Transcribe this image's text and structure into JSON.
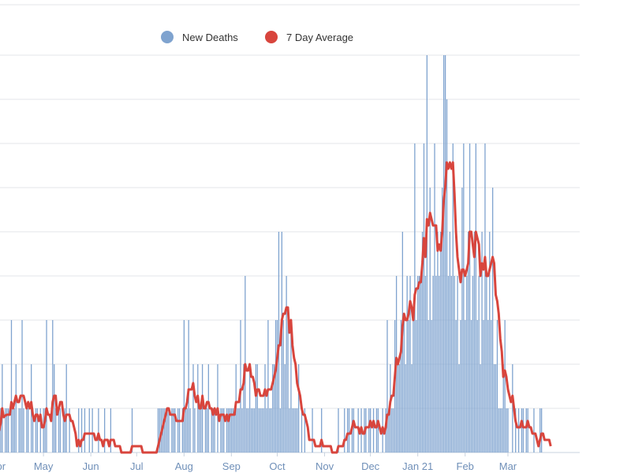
{
  "chart_data": {
    "type": "bar",
    "title": "",
    "xlabel": "",
    "ylabel": "",
    "ylim": [
      0,
      9
    ],
    "grid": true,
    "legend_position": "top-center",
    "start_date": "2020-04-01",
    "end_date": "2021-03-29",
    "x_tick_labels": [
      {
        "label": "Apr",
        "day_index": 0
      },
      {
        "label": "May",
        "day_index": 30
      },
      {
        "label": "Jun",
        "day_index": 61
      },
      {
        "label": "Jul",
        "day_index": 91
      },
      {
        "label": "Aug",
        "day_index": 122
      },
      {
        "label": "Sep",
        "day_index": 153
      },
      {
        "label": "Oct",
        "day_index": 183
      },
      {
        "label": "Nov",
        "day_index": 214
      },
      {
        "label": "Dec",
        "day_index": 244
      },
      {
        "label": "Jan 21",
        "day_index": 275
      },
      {
        "label": "Feb",
        "day_index": 306
      },
      {
        "label": "Mar",
        "day_index": 334
      }
    ],
    "series": [
      {
        "name": "New Deaths",
        "kind": "bar",
        "color": "#7fa3cf",
        "values": [
          1,
          0,
          1,
          2,
          0,
          1,
          1,
          1,
          0,
          3,
          1,
          1,
          2,
          0,
          1,
          1,
          3,
          1,
          0,
          1,
          1,
          0,
          2,
          1,
          0,
          1,
          1,
          0,
          1,
          0,
          1,
          1,
          3,
          0,
          0,
          0,
          3,
          2,
          1,
          0,
          1,
          1,
          0,
          1,
          1,
          2,
          0,
          1,
          0,
          0,
          0,
          0,
          0,
          1,
          0,
          1,
          0,
          1,
          0,
          0,
          1,
          0,
          1,
          0,
          0,
          0,
          1,
          0,
          0,
          0,
          1,
          0,
          0,
          0,
          1,
          0,
          0,
          0,
          0,
          0,
          0,
          0,
          0,
          0,
          0,
          0,
          0,
          0,
          1,
          0,
          0,
          0,
          0,
          0,
          0,
          0,
          0,
          0,
          0,
          0,
          0,
          0,
          0,
          0,
          0,
          1,
          1,
          1,
          1,
          1,
          1,
          1,
          1,
          0,
          1,
          1,
          1,
          0,
          1,
          1,
          0,
          1,
          3,
          1,
          1,
          3,
          1,
          0,
          2,
          1,
          0,
          2,
          1,
          1,
          2,
          0,
          1,
          1,
          2,
          0,
          1,
          1,
          1,
          0,
          2,
          0,
          1,
          1,
          1,
          0,
          1,
          1,
          1,
          1,
          1,
          1,
          2,
          1,
          1,
          3,
          1,
          2,
          4,
          1,
          1,
          2,
          1,
          1,
          1,
          2,
          2,
          1,
          1,
          1,
          1,
          2,
          1,
          3,
          1,
          1,
          2,
          2,
          3,
          3,
          5,
          1,
          5,
          3,
          2,
          4,
          3,
          1,
          3,
          1,
          1,
          1,
          1,
          2,
          0,
          1,
          0,
          1,
          0,
          0,
          0,
          0,
          1,
          0,
          0,
          0,
          0,
          0,
          1,
          0,
          0,
          0,
          0,
          0,
          0,
          0,
          0,
          0,
          0,
          1,
          0,
          0,
          0,
          1,
          0,
          1,
          1,
          0,
          1,
          1,
          0,
          0,
          1,
          0,
          1,
          0,
          1,
          1,
          0,
          1,
          1,
          0,
          1,
          0,
          1,
          1,
          0,
          0,
          1,
          0,
          1,
          3,
          1,
          2,
          1,
          1,
          3,
          4,
          2,
          2,
          3,
          5,
          3,
          2,
          4,
          3,
          4,
          2,
          3,
          7,
          3,
          4,
          4,
          4,
          5,
          7,
          4,
          9,
          3,
          6,
          3,
          4,
          7,
          4,
          5,
          4,
          5,
          6,
          9,
          9,
          8,
          4,
          5,
          4,
          7,
          4,
          3,
          4,
          2,
          3,
          6,
          7,
          3,
          4,
          5,
          7,
          3,
          4,
          5,
          7,
          3,
          4,
          2,
          5,
          3,
          7,
          4,
          3,
          5,
          3,
          6,
          2,
          2,
          3,
          1,
          1,
          1,
          2,
          3,
          1,
          1,
          0,
          0,
          2,
          0,
          1,
          0,
          1,
          0,
          1,
          1,
          0,
          1,
          1,
          0,
          0,
          0,
          1,
          0,
          0,
          0,
          1,
          1,
          0,
          0,
          0,
          0,
          0,
          0
        ]
      },
      {
        "name": "7 Day Average",
        "kind": "line",
        "color": "#d8453d",
        "window": 7
      }
    ]
  }
}
